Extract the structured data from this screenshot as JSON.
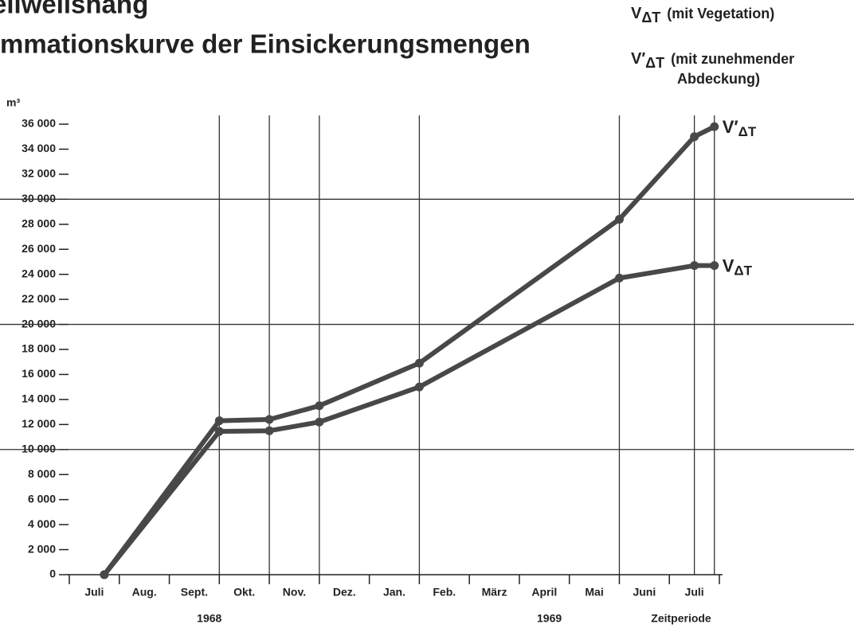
{
  "chart_data": {
    "type": "line",
    "title_lines": [
      "eilweilshang",
      "mmationskurve der Einsickerungsmengen"
    ],
    "y_label": "m³",
    "categories": [
      "Juli",
      "Aug.",
      "Sept.",
      "Okt.",
      "Nov.",
      "Dez.",
      "Jan.",
      "Feb.",
      "März",
      "April",
      "Mai",
      "Juni",
      "Juli"
    ],
    "year_labels": [
      {
        "label": "1968",
        "value": 2.8
      },
      {
        "label": "1969",
        "value": 9.6
      }
    ],
    "x_label": "Zeitperiode",
    "x": [
      0.7,
      3,
      4,
      5,
      7,
      11,
      12.5,
      12.9
    ],
    "xlim": [
      0,
      13
    ],
    "series": [
      {
        "symbol": "V",
        "subscript": "ΔT",
        "description_lines": [
          "(mit Vegetation)"
        ],
        "color": "#484848",
        "values": [
          0,
          11450,
          11500,
          12200,
          15000,
          23700,
          24700,
          24700
        ]
      },
      {
        "symbol": "V′",
        "subscript": "ΔT",
        "description_lines": [
          "(mit zunehmender",
          "Abdeckung)"
        ],
        "color": "#484848",
        "values": [
          0,
          12300,
          12400,
          13500,
          16900,
          28400,
          35000,
          35800
        ]
      }
    ],
    "ylim": [
      0,
      36000
    ],
    "yticks": [
      0,
      {
        "value": 2000,
        "label": "2 000"
      },
      {
        "value": 4000,
        "label": "4 000"
      },
      {
        "value": 6000,
        "label": "6 000"
      },
      {
        "value": 8000,
        "label": "8 000"
      },
      {
        "value": 10000,
        "label": "10 000"
      },
      {
        "value": 12000,
        "label": "12 000"
      },
      {
        "value": 14000,
        "label": "14 000"
      },
      {
        "value": 16000,
        "label": "16 000"
      },
      {
        "value": 18000,
        "label": "18 000"
      },
      {
        "value": 20000,
        "label": "20 000"
      },
      {
        "value": 22000,
        "label": "22 000"
      },
      {
        "value": 24000,
        "label": "24 000"
      },
      {
        "value": 26000,
        "label": "26 000"
      },
      {
        "value": 28000,
        "label": "28 000"
      },
      {
        "value": 30000,
        "label": "30 000"
      },
      {
        "value": 32000,
        "label": "32 000"
      },
      {
        "value": 34000,
        "label": "34 000"
      },
      {
        "value": 36000,
        "label": "36 000"
      }
    ],
    "grid_yticks": [
      10000,
      20000,
      30000
    ]
  }
}
